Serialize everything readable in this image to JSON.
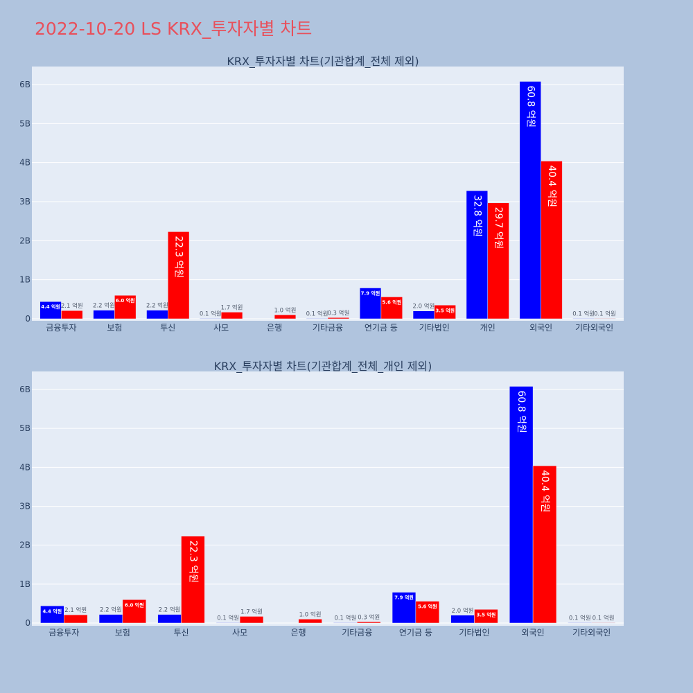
{
  "title": "2022-10-20 LS KRX_투자자별 차트",
  "colors": {
    "buy": "#0000ff",
    "sell": "#ff0000",
    "plot_bg": "#e5ecf6",
    "page_bg": "#b0c4de",
    "title": "#e8505b"
  },
  "chart_data": [
    {
      "type": "bar",
      "title": "KRX_투자자별 차트(기관합계_전체 제외)",
      "categories": [
        "금융투자",
        "보험",
        "투신",
        "사모",
        "은행",
        "기타금융",
        "연기금 등",
        "기타법인",
        "개인",
        "외국인",
        "기타외국인"
      ],
      "series": [
        {
          "values": [
            0.44,
            0.22,
            0.22,
            0.01,
            0,
            0.01,
            0.79,
            0.2,
            3.28,
            6.08,
            0.01
          ],
          "labels": [
            "4.4 억원",
            "2.2 억원",
            "2.2 억원",
            "0.1 억원",
            "",
            "0.1 억원",
            "7.9 억원",
            "2.0 억원",
            "32.8 억원",
            "60.8 억원",
            "0.1 억원"
          ]
        },
        {
          "values": [
            0.21,
            0.6,
            2.23,
            0.17,
            0.1,
            0.03,
            0.56,
            0.35,
            2.97,
            4.04,
            0.01
          ],
          "labels": [
            "2.1 억원",
            "6.0 억원",
            "22.3 억원",
            "1.7 억원",
            "1.0 억원",
            "0.3 억원",
            "5.6 억원",
            "3.5 억원",
            "29.7 억원",
            "40.4 억원",
            "0.1 억원"
          ]
        }
      ],
      "yticks": [
        "0",
        "1B",
        "2B",
        "3B",
        "4B",
        "5B",
        "6B"
      ],
      "ylim": [
        0,
        6.5
      ],
      "grid": true
    },
    {
      "type": "bar",
      "title": "KRX_투자자별 차트(기관합계_전체_개인 제외)",
      "categories": [
        "금융투자",
        "보험",
        "투신",
        "사모",
        "은행",
        "기타금융",
        "연기금 등",
        "기타법인",
        "외국인",
        "기타외국인"
      ],
      "series": [
        {
          "values": [
            0.44,
            0.22,
            0.22,
            0.01,
            0,
            0.01,
            0.79,
            0.2,
            6.08,
            0.01
          ],
          "labels": [
            "4.4 억원",
            "2.2 억원",
            "2.2 억원",
            "0.1 억원",
            "",
            "0.1 억원",
            "7.9 억원",
            "2.0 억원",
            "60.8 억원",
            "0.1 억원"
          ]
        },
        {
          "values": [
            0.21,
            0.6,
            2.23,
            0.17,
            0.1,
            0.03,
            0.56,
            0.35,
            4.04,
            0.01
          ],
          "labels": [
            "2.1 억원",
            "6.0 억원",
            "22.3 억원",
            "1.7 억원",
            "1.0 억원",
            "0.3 억원",
            "5.6 억원",
            "3.5 억원",
            "40.4 억원",
            "0.1 억원"
          ]
        }
      ],
      "yticks": [
        "0",
        "1B",
        "2B",
        "3B",
        "4B",
        "5B",
        "6B"
      ],
      "ylim": [
        0,
        6.5
      ],
      "grid": true
    }
  ]
}
